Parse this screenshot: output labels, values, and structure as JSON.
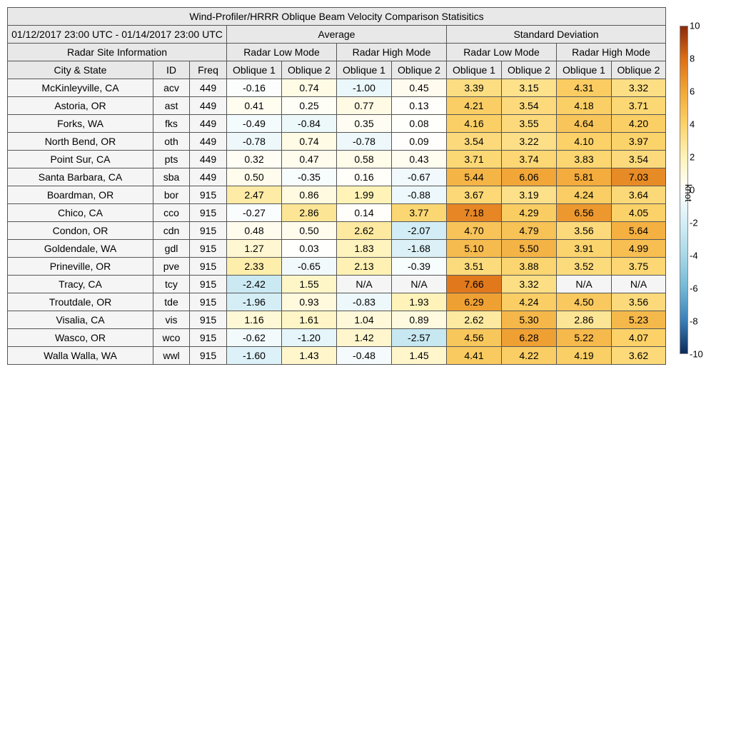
{
  "chart_data": {
    "type": "table",
    "title": "Wind-Profiler/HRRR Oblique Beam Velocity Comparison Statisitics",
    "date_range": "01/12/2017 23:00 UTC - 01/14/2017 23:00 UTC",
    "groups": {
      "site_info": "Radar Site Information",
      "average": "Average",
      "std_dev": "Standard Deviation"
    },
    "modes": [
      "Radar Low Mode",
      "Radar High Mode",
      "Radar Low Mode",
      "Radar High Mode"
    ],
    "columns": [
      "City & State",
      "ID",
      "Freq",
      "Oblique 1",
      "Oblique 2",
      "Oblique 1",
      "Oblique 2",
      "Oblique 1",
      "Oblique 2",
      "Oblique 1",
      "Oblique 2"
    ],
    "rows": [
      [
        "McKinleyville, CA",
        "acv",
        "449",
        "-0.16",
        "0.74",
        "-1.00",
        "0.45",
        "3.39",
        "3.15",
        "4.31",
        "3.32"
      ],
      [
        "Astoria, OR",
        "ast",
        "449",
        "0.41",
        "0.25",
        "0.77",
        "0.13",
        "4.21",
        "3.54",
        "4.18",
        "3.71"
      ],
      [
        "Forks, WA",
        "fks",
        "449",
        "-0.49",
        "-0.84",
        "0.35",
        "0.08",
        "4.16",
        "3.55",
        "4.64",
        "4.20"
      ],
      [
        "North Bend, OR",
        "oth",
        "449",
        "-0.78",
        "0.74",
        "-0.78",
        "0.09",
        "3.54",
        "3.22",
        "4.10",
        "3.97"
      ],
      [
        "Point Sur, CA",
        "pts",
        "449",
        "0.32",
        "0.47",
        "0.58",
        "0.43",
        "3.71",
        "3.74",
        "3.83",
        "3.54"
      ],
      [
        "Santa Barbara, CA",
        "sba",
        "449",
        "0.50",
        "-0.35",
        "0.16",
        "-0.67",
        "5.44",
        "6.06",
        "5.81",
        "7.03"
      ],
      [
        "Boardman, OR",
        "bor",
        "915",
        "2.47",
        "0.86",
        "1.99",
        "-0.88",
        "3.67",
        "3.19",
        "4.24",
        "3.64"
      ],
      [
        "Chico, CA",
        "cco",
        "915",
        "-0.27",
        "2.86",
        "0.14",
        "3.77",
        "7.18",
        "4.29",
        "6.56",
        "4.05"
      ],
      [
        "Condon, OR",
        "cdn",
        "915",
        "0.48",
        "0.50",
        "2.62",
        "-2.07",
        "4.70",
        "4.79",
        "3.56",
        "5.64"
      ],
      [
        "Goldendale, WA",
        "gdl",
        "915",
        "1.27",
        "0.03",
        "1.83",
        "-1.68",
        "5.10",
        "5.50",
        "3.91",
        "4.99"
      ],
      [
        "Prineville, OR",
        "pve",
        "915",
        "2.33",
        "-0.65",
        "2.13",
        "-0.39",
        "3.51",
        "3.88",
        "3.52",
        "3.75"
      ],
      [
        "Tracy, CA",
        "tcy",
        "915",
        "-2.42",
        "1.55",
        "N/A",
        "N/A",
        "7.66",
        "3.32",
        "N/A",
        "N/A"
      ],
      [
        "Troutdale, OR",
        "tde",
        "915",
        "-1.96",
        "0.93",
        "-0.83",
        "1.93",
        "6.29",
        "4.24",
        "4.50",
        "3.56"
      ],
      [
        "Visalia, CA",
        "vis",
        "915",
        "1.16",
        "1.61",
        "1.04",
        "0.89",
        "2.62",
        "5.30",
        "2.86",
        "5.23"
      ],
      [
        "Wasco, OR",
        "wco",
        "915",
        "-0.62",
        "-1.20",
        "1.42",
        "-2.57",
        "4.56",
        "6.28",
        "5.22",
        "4.07"
      ],
      [
        "Walla Walla, WA",
        "wwl",
        "915",
        "-1.60",
        "1.43",
        "-0.48",
        "1.45",
        "4.41",
        "4.22",
        "4.19",
        "3.62"
      ]
    ],
    "colorbar": {
      "unit": "knot",
      "range": [
        -10,
        10
      ],
      "ticks": [
        "10",
        "8",
        "6",
        "4",
        "2",
        "0",
        "-2",
        "-4",
        "-6",
        "-8",
        "-10"
      ],
      "colors": {
        "neg": [
          "#ffffff",
          "#d4eef6",
          "#a8d8e6",
          "#72b8d6",
          "#3a7fb8",
          "#0b2a5a"
        ],
        "pos": [
          "#ffffff",
          "#fff3b8",
          "#fbd36a",
          "#f2a838",
          "#dd6f16",
          "#8a2a0c"
        ]
      },
      "na_color": "#f5f5f5"
    }
  }
}
